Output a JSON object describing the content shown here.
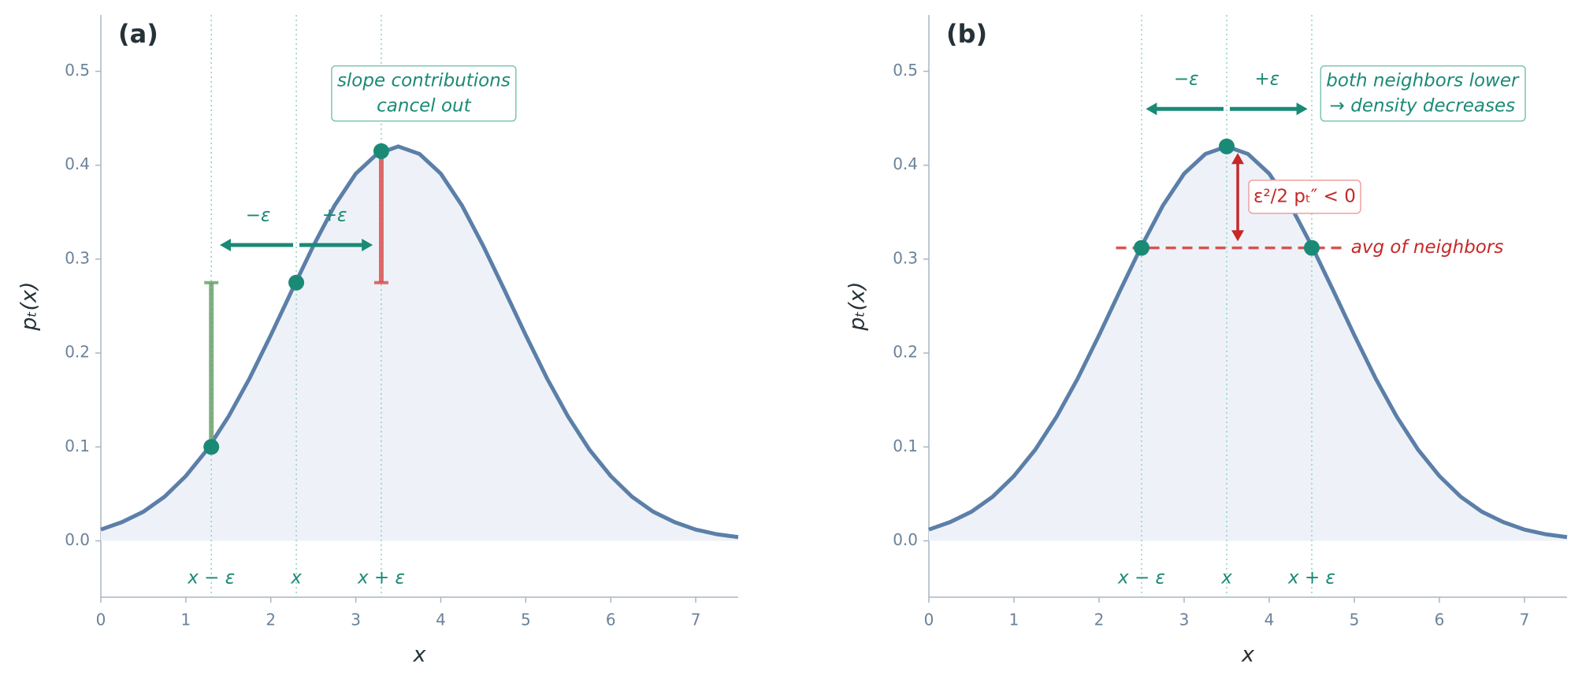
{
  "chart_data": [
    {
      "type": "line",
      "panel_label": "(a)",
      "xlabel": "x",
      "ylabel": "pₜ(x)",
      "xlim": [
        0,
        7.5
      ],
      "ylim": [
        -0.06,
        0.56
      ],
      "xticks": [
        0,
        1,
        2,
        3,
        4,
        5,
        6,
        7
      ],
      "yticks": [
        {
          "value": 0,
          "label": "0.0"
        },
        0.1,
        0.2,
        0.3,
        0.4,
        0.5
      ],
      "x": [
        0,
        0.25,
        0.5,
        0.75,
        1,
        1.25,
        1.5,
        1.75,
        2,
        2.25,
        2.5,
        2.75,
        3,
        3.25,
        3.5,
        3.75,
        4,
        4.25,
        4.5,
        4.75,
        5,
        5.25,
        5.5,
        5.75,
        6,
        6.25,
        6.5,
        6.75,
        7,
        7.25,
        7.5
      ],
      "values": [
        0.012,
        0.02,
        0.031,
        0.047,
        0.069,
        0.097,
        0.132,
        0.173,
        0.219,
        0.267,
        0.314,
        0.357,
        0.391,
        0.412,
        0.42,
        0.412,
        0.391,
        0.357,
        0.314,
        0.267,
        0.219,
        0.173,
        0.132,
        0.097,
        0.069,
        0.047,
        0.031,
        0.02,
        0.012,
        0.007,
        0.004
      ],
      "color": "#5b7fa8",
      "fill": "#eef2f8",
      "points": {
        "x": [
          1.3,
          2.3,
          3.3
        ],
        "values": [
          0.1,
          0.275,
          0.415
        ],
        "color": "#1a8a76"
      },
      "guides": {
        "x": [
          1.3,
          2.3,
          3.3
        ],
        "labels": [
          "x − ε",
          "x",
          "x + ε"
        ],
        "color": "#8fd0c0"
      },
      "arrows": [
        {
          "label": "−ε",
          "x": [
            2.3,
            1.4
          ],
          "y": 0.315
        },
        {
          "label": "+ε",
          "x": [
            2.3,
            3.2
          ],
          "y": 0.315
        }
      ],
      "arrow_color": "#1a8a76",
      "segments": [
        {
          "x": 1.3,
          "from": 0.1,
          "to": 0.275,
          "color": "#6aa36a"
        },
        {
          "x": 3.3,
          "from": 0.275,
          "to": 0.415,
          "color": "#d9534f"
        }
      ],
      "annotation": [
        "slope contributions",
        "cancel out"
      ]
    },
    {
      "type": "line",
      "panel_label": "(b)",
      "xlabel": "x",
      "ylabel": "pₜ(x)",
      "xlim": [
        0,
        7.5
      ],
      "ylim": [
        -0.06,
        0.56
      ],
      "xticks": [
        0,
        1,
        2,
        3,
        4,
        5,
        6,
        7
      ],
      "yticks": [
        {
          "value": 0,
          "label": "0.0"
        },
        0.1,
        0.2,
        0.3,
        0.4,
        0.5
      ],
      "x": [
        0,
        0.25,
        0.5,
        0.75,
        1,
        1.25,
        1.5,
        1.75,
        2,
        2.25,
        2.5,
        2.75,
        3,
        3.25,
        3.5,
        3.75,
        4,
        4.25,
        4.5,
        4.75,
        5,
        5.25,
        5.5,
        5.75,
        6,
        6.25,
        6.5,
        6.75,
        7,
        7.25,
        7.5
      ],
      "values": [
        0.012,
        0.02,
        0.031,
        0.047,
        0.069,
        0.097,
        0.132,
        0.173,
        0.219,
        0.267,
        0.314,
        0.357,
        0.391,
        0.412,
        0.42,
        0.412,
        0.391,
        0.357,
        0.314,
        0.267,
        0.219,
        0.173,
        0.132,
        0.097,
        0.069,
        0.047,
        0.031,
        0.02,
        0.012,
        0.007,
        0.004
      ],
      "color": "#5b7fa8",
      "fill": "#eef2f8",
      "points": {
        "x": [
          2.5,
          3.5,
          4.5
        ],
        "values": [
          0.312,
          0.42,
          0.312
        ],
        "color": "#1a8a76"
      },
      "guides": {
        "x": [
          2.5,
          3.5,
          4.5
        ],
        "labels": [
          "x − ε",
          "x",
          "x + ε"
        ],
        "color": "#8fd0c0"
      },
      "arrows": [
        {
          "label": "−ε",
          "x": [
            3.5,
            2.55
          ],
          "y": 0.46
        },
        {
          "label": "+ε",
          "x": [
            3.5,
            4.45
          ],
          "y": 0.46
        }
      ],
      "arrow_color": "#1a8a76",
      "hline": {
        "y": 0.312,
        "x": [
          2.2,
          4.85
        ],
        "color": "#d9534f",
        "label": "avg of neighbors",
        "label_color": "#c62828"
      },
      "double_arrow": {
        "x": 3.63,
        "from": 0.319,
        "to": 0.413,
        "label": "ε²/2 pₜ″ < 0",
        "color": "#c62828"
      },
      "annotation": [
        "both neighbors lower",
        "→ density decreases"
      ]
    }
  ]
}
